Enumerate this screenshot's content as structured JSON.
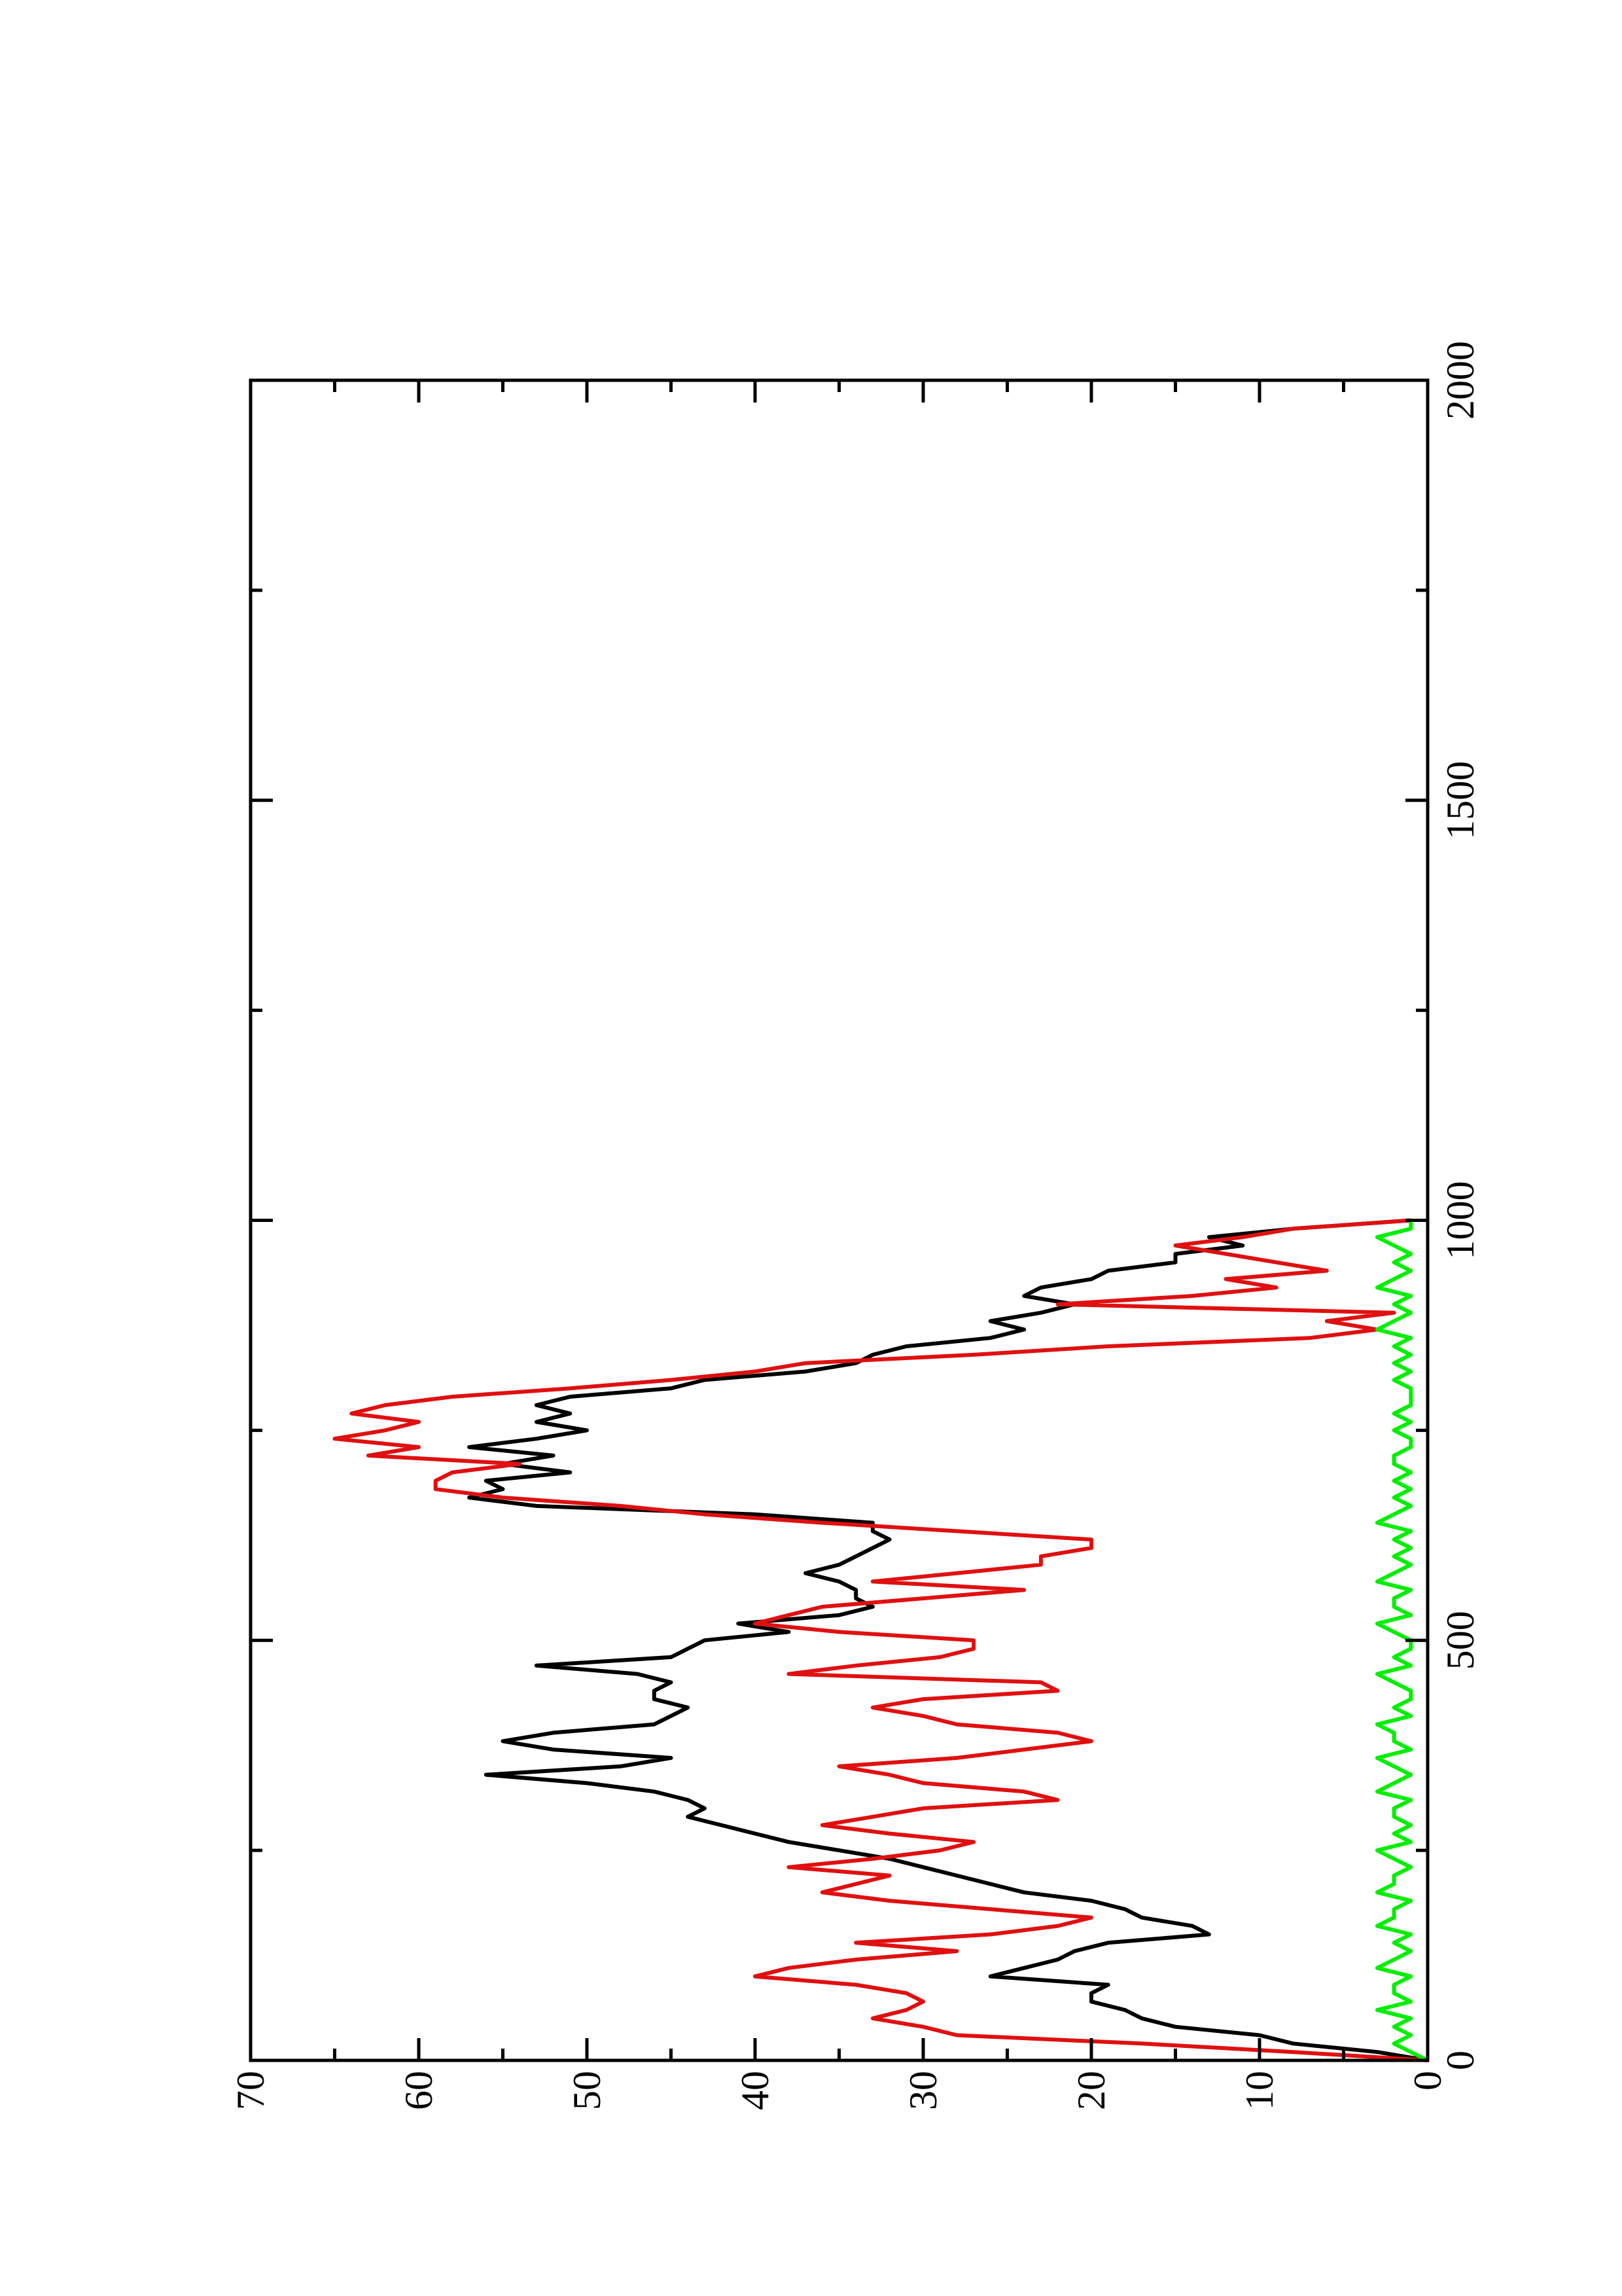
{
  "chart_data": {
    "type": "line",
    "x": [
      0,
      10,
      20,
      30,
      40,
      50,
      60,
      70,
      80,
      90,
      100,
      110,
      120,
      130,
      140,
      150,
      160,
      170,
      180,
      190,
      200,
      210,
      220,
      230,
      240,
      250,
      260,
      270,
      280,
      290,
      300,
      310,
      320,
      330,
      340,
      350,
      360,
      370,
      380,
      390,
      400,
      410,
      420,
      430,
      440,
      450,
      460,
      470,
      480,
      490,
      500,
      510,
      520,
      530,
      540,
      550,
      560,
      570,
      580,
      590,
      600,
      610,
      620,
      630,
      640,
      650,
      660,
      670,
      680,
      690,
      700,
      710,
      720,
      730,
      740,
      750,
      760,
      770,
      780,
      790,
      800,
      810,
      820,
      830,
      840,
      850,
      860,
      870,
      880,
      890,
      900,
      910,
      920,
      930,
      940,
      950,
      960,
      970,
      980,
      990,
      1000
    ],
    "series": [
      {
        "color": "#000000",
        "values": [
          0,
          3,
          8,
          10,
          15,
          17,
          18,
          20,
          20,
          19,
          26,
          24,
          22,
          21,
          19,
          13,
          14,
          17,
          18,
          20,
          24,
          26,
          28,
          30,
          32,
          35,
          38,
          40,
          42,
          44,
          43,
          44,
          46,
          50,
          56,
          48,
          45,
          52,
          55,
          52,
          46,
          45,
          44,
          46,
          46,
          45,
          47,
          53,
          45,
          44,
          43,
          38,
          41,
          35,
          33,
          34,
          34,
          35,
          37,
          35,
          34,
          33,
          32,
          33,
          33,
          40,
          53,
          57,
          55,
          56,
          51,
          55,
          52,
          57,
          53,
          50,
          53,
          51,
          53,
          51,
          45,
          43,
          37,
          34,
          33,
          31,
          26,
          24,
          26,
          23,
          21,
          24,
          23,
          20,
          19,
          15,
          15,
          11,
          13,
          8,
          1
        ]
      },
      {
        "color": "#e01010",
        "values": [
          0,
          8,
          17,
          28,
          30,
          33,
          31,
          30,
          31,
          34,
          40,
          38,
          34,
          28,
          34,
          26,
          22,
          20,
          26,
          32,
          36,
          34,
          32,
          38,
          33,
          29,
          27,
          32,
          36,
          33,
          30,
          22,
          24,
          30,
          32,
          35,
          28,
          24,
          20,
          22,
          28,
          30,
          33,
          30,
          22,
          23,
          38,
          34,
          29,
          27,
          27,
          35,
          40,
          38,
          36,
          30,
          24,
          33,
          28,
          23,
          23,
          20,
          20,
          28,
          36,
          43,
          48,
          55,
          59,
          59,
          58,
          54,
          63,
          60,
          65,
          62,
          60,
          64,
          62,
          58,
          51,
          45,
          40,
          37,
          27,
          19,
          7,
          3,
          6,
          2,
          22,
          14,
          9,
          12,
          6,
          9,
          12,
          15,
          11,
          8,
          1
        ]
      },
      {
        "color": "#00ee00",
        "values": [
          0,
          1,
          2,
          1,
          2,
          1,
          3,
          1,
          2,
          2,
          1,
          3,
          2,
          1,
          2,
          1,
          3,
          2,
          2,
          1,
          3,
          2,
          2,
          1,
          2,
          3,
          1,
          2,
          1,
          2,
          2,
          1,
          3,
          2,
          1,
          2,
          3,
          1,
          2,
          2,
          3,
          1,
          2,
          1,
          1,
          2,
          3,
          1,
          2,
          1,
          1,
          2,
          3,
          1,
          2,
          2,
          1,
          3,
          2,
          1,
          2,
          1,
          2,
          1,
          3,
          2,
          1,
          2,
          1,
          2,
          1,
          2,
          2,
          1,
          1,
          2,
          1,
          2,
          1,
          1,
          1,
          2,
          1,
          2,
          1,
          2,
          1,
          3,
          2,
          1,
          2,
          1,
          3,
          2,
          1,
          2,
          1,
          2,
          3,
          1,
          1
        ]
      }
    ],
    "xlim": [
      0,
      2000
    ],
    "xticks": [
      0,
      500,
      1000,
      1500,
      2000
    ],
    "xminor_ticks": [
      250,
      750,
      1250,
      1750
    ],
    "ylim": [
      0,
      70
    ],
    "yticks": [
      0,
      10,
      20,
      30,
      40,
      50,
      60,
      70
    ],
    "yminor_ticks": [
      5,
      15,
      25,
      35,
      45,
      55,
      65
    ],
    "rotated": true
  }
}
